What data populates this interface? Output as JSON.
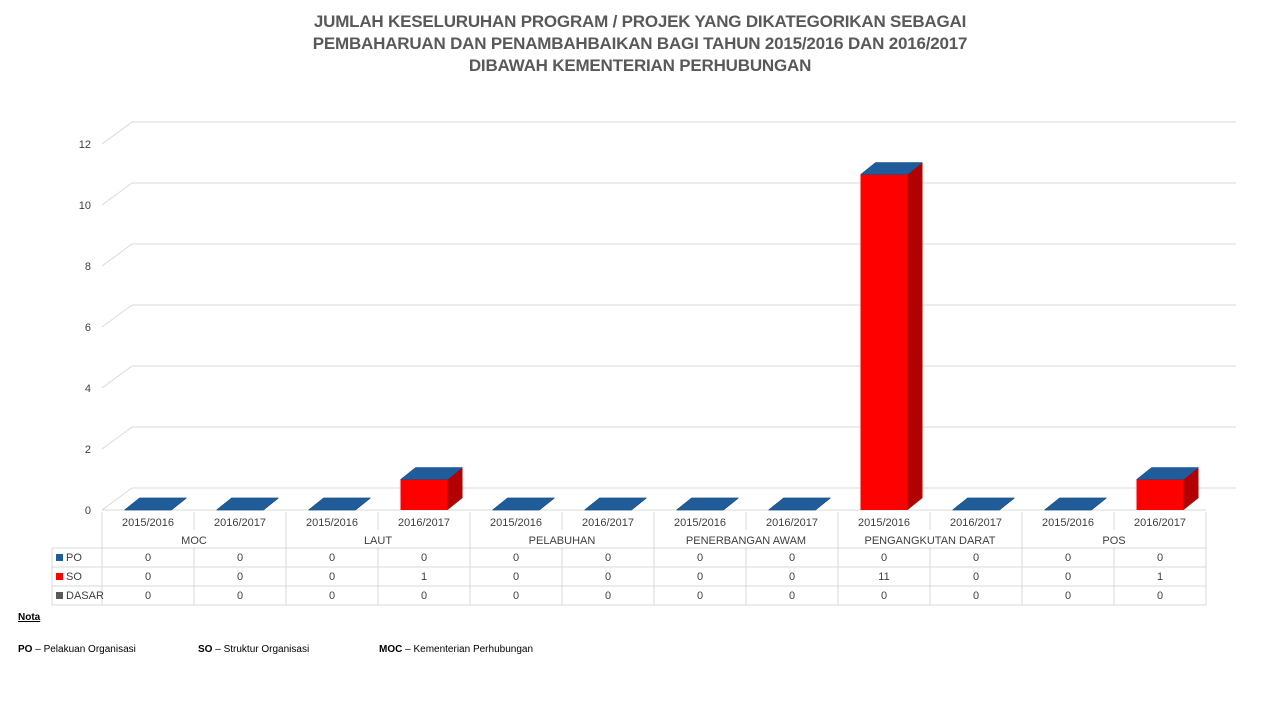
{
  "title_lines": [
    "JUMLAH KESELURUHAN PROGRAM / PROJEK YANG DIKATEGORIKAN SEBAGAI",
    "PEMBAHARUAN DAN PENAMBAHBAIKAN BAGI TAHUN 2015/2016 DAN 2016/2017",
    "DIBAWAH KEMENTERIAN PERHUBUNGAN"
  ],
  "chart_data": {
    "type": "bar",
    "groups": [
      "MOC",
      "LAUT",
      "PELABUHAN",
      "PENERBANGAN AWAM",
      "PENGANGKUTAN DARAT",
      "POS"
    ],
    "years": [
      "2015/2016",
      "2016/2017"
    ],
    "categories": [
      "MOC 2015/2016",
      "MOC 2016/2017",
      "LAUT 2015/2016",
      "LAUT 2016/2017",
      "PELABUHAN 2015/2016",
      "PELABUHAN 2016/2017",
      "PENERBANGAN AWAM 2015/2016",
      "PENERBANGAN AWAM 2016/2017",
      "PENGANGKUTAN DARAT 2015/2016",
      "PENGANGKUTAN DARAT 2016/2017",
      "POS 2015/2016",
      "POS 2016/2017"
    ],
    "series": [
      {
        "name": "PO",
        "color": "#1F5C99",
        "values": [
          0,
          0,
          0,
          0,
          0,
          0,
          0,
          0,
          0,
          0,
          0,
          0
        ]
      },
      {
        "name": "SO",
        "color": "#FF0000",
        "values": [
          0,
          0,
          0,
          1,
          0,
          0,
          0,
          0,
          11,
          0,
          0,
          1
        ]
      },
      {
        "name": "DASAR",
        "color": "#595959",
        "values": [
          0,
          0,
          0,
          0,
          0,
          0,
          0,
          0,
          0,
          0,
          0,
          0
        ]
      }
    ],
    "ylim": [
      0,
      12
    ],
    "yticks": [
      "0",
      "2",
      "4",
      "6",
      "8",
      "10",
      "12"
    ],
    "grid": true,
    "legend": "data-table"
  },
  "notes": {
    "title": "Nota",
    "items": [
      {
        "key": "PO",
        "sep": " – ",
        "text": "Pelakuan Organisasi"
      },
      {
        "key": "SO",
        "sep": " – ",
        "text": "Struktur Organisasi"
      },
      {
        "key": "MOC",
        "sep": " – ",
        "text": "Kementerian Perhubungan"
      }
    ]
  }
}
